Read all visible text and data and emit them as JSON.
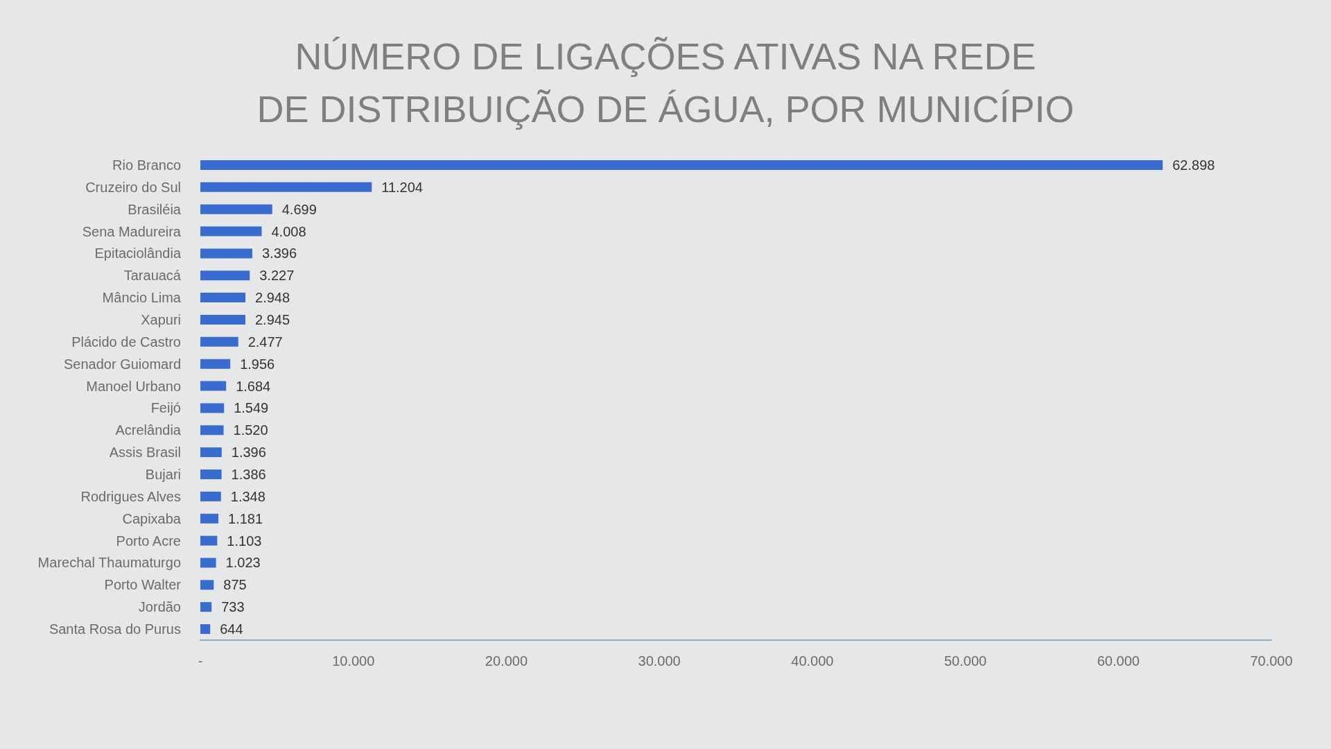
{
  "chart_data": {
    "type": "bar",
    "orientation": "horizontal",
    "title": "NÚMERO DE LIGAÇÕES ATIVAS NA REDE\nDE DISTRIBUIÇÃO DE ÁGUA, POR MUNICÍPIO",
    "categories": [
      "Rio Branco",
      "Cruzeiro do Sul",
      "Brasiléia",
      "Sena Madureira",
      "Epitaciolândia",
      "Tarauacá",
      "Mâncio Lima",
      "Xapuri",
      "Plácido de Castro",
      "Senador Guiomard",
      "Manoel Urbano",
      "Feijó",
      "Acrelândia",
      "Assis Brasil",
      "Bujari",
      "Rodrigues Alves",
      "Capixaba",
      "Porto Acre",
      "Marechal Thaumaturgo",
      "Porto Walter",
      "Jordão",
      "Santa Rosa do Purus"
    ],
    "values": [
      62898,
      11204,
      4699,
      4008,
      3396,
      3227,
      2948,
      2945,
      2477,
      1956,
      1684,
      1549,
      1520,
      1396,
      1386,
      1348,
      1181,
      1103,
      1023,
      875,
      733,
      644
    ],
    "value_labels": [
      "62.898",
      "11.204",
      "4.699",
      "4.008",
      "3.396",
      "3.227",
      "2.948",
      "2.945",
      "2.477",
      "1.956",
      "1.684",
      "1.549",
      "1.520",
      "1.396",
      "1.386",
      "1.348",
      "1.181",
      "1.103",
      "1.023",
      "875",
      "733",
      "644"
    ],
    "color": "#3a6ccf",
    "xlim": [
      0,
      70000
    ],
    "xticks": [
      {
        "value": 0,
        "label": "-"
      },
      {
        "value": 10000,
        "label": "10.000"
      },
      {
        "value": 20000,
        "label": "20.000"
      },
      {
        "value": 30000,
        "label": "30.000"
      },
      {
        "value": 40000,
        "label": "40.000"
      },
      {
        "value": 50000,
        "label": "50.000"
      },
      {
        "value": 60000,
        "label": "60.000"
      },
      {
        "value": 70000,
        "label": "70.000"
      }
    ],
    "grid": false
  }
}
